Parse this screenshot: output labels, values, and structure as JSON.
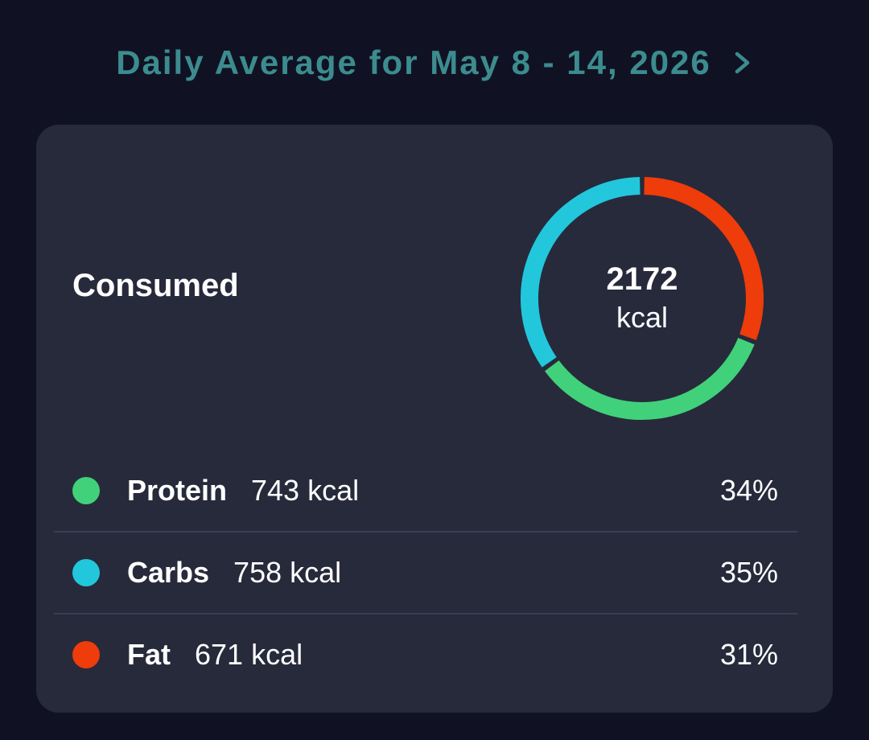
{
  "header": {
    "title": "Daily Average for May 8 - 14, 2026",
    "icon": "chevron-right-icon",
    "color": "#3c8c8f"
  },
  "card": {
    "consumed_label": "Consumed",
    "total_value": "2172",
    "total_unit": "kcal"
  },
  "macros": [
    {
      "name": "Protein",
      "kcal": "743 kcal",
      "percent": "34%",
      "color": "#41d17a"
    },
    {
      "name": "Carbs",
      "kcal": "758 kcal",
      "percent": "35%",
      "color": "#22c7dc"
    },
    {
      "name": "Fat",
      "kcal": "671 kcal",
      "percent": "31%",
      "color": "#ee3c0a"
    }
  ],
  "chart_data": {
    "type": "pie",
    "categories": [
      "Protein",
      "Carbs",
      "Fat"
    ],
    "values": [
      743,
      758,
      671
    ],
    "title": "",
    "xlabel": "",
    "ylabel": "",
    "colors": [
      "#41d17a",
      "#22c7dc",
      "#ee3c0a"
    ]
  }
}
